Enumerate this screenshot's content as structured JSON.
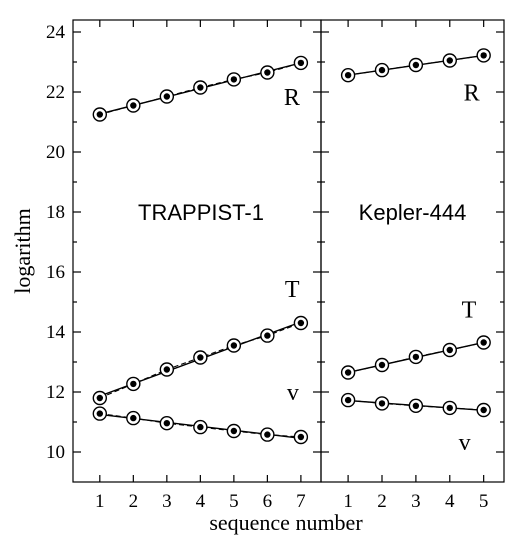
{
  "chart_data": [
    {
      "type": "line",
      "title": "TRAPPIST-1",
      "xlabel": "sequence number",
      "ylabel": "logarithm",
      "x": [
        1,
        2,
        3,
        4,
        5,
        6,
        7
      ],
      "xlim": [
        0.2,
        7.6
      ],
      "ylim": [
        9,
        24.4
      ],
      "yticks": [
        10,
        12,
        14,
        16,
        18,
        20,
        22,
        24
      ],
      "grid": false,
      "series": [
        {
          "name": "R",
          "values": [
            21.25,
            21.55,
            21.85,
            22.15,
            22.42,
            22.65,
            22.97
          ]
        },
        {
          "name": "T",
          "values": [
            11.8,
            12.27,
            12.75,
            13.15,
            13.55,
            13.88,
            14.3
          ]
        },
        {
          "name": "v",
          "values": [
            11.28,
            11.13,
            10.96,
            10.83,
            10.7,
            10.58,
            10.5
          ]
        }
      ]
    },
    {
      "type": "line",
      "title": "Kepler-444",
      "xlabel": "sequence number",
      "ylabel": "",
      "x": [
        1,
        2,
        3,
        4,
        5
      ],
      "xlim": [
        0.2,
        5.6
      ],
      "ylim": [
        9,
        24.4
      ],
      "grid": false,
      "series": [
        {
          "name": "R",
          "values": [
            22.56,
            22.73,
            22.9,
            23.05,
            23.22
          ]
        },
        {
          "name": "T",
          "values": [
            12.65,
            12.9,
            13.17,
            13.4,
            13.65
          ]
        },
        {
          "name": "v",
          "values": [
            11.73,
            11.62,
            11.54,
            11.47,
            11.4
          ]
        }
      ]
    }
  ]
}
